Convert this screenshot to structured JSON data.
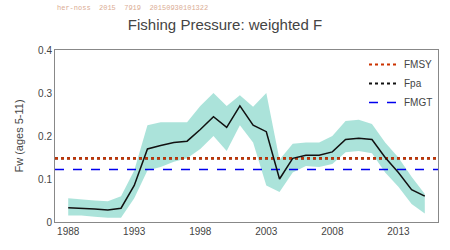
{
  "chart_data": {
    "type": "line",
    "title": "Fishing Pressure: weighted F",
    "y_label": "Fw (ages 5-11)",
    "x": [
      1988,
      1989,
      1990,
      1991,
      1992,
      1993,
      1994,
      1995,
      1996,
      1997,
      1998,
      1999,
      2000,
      2001,
      2002,
      2003,
      2004,
      2005,
      2006,
      2007,
      2008,
      2009,
      2010,
      2011,
      2012,
      2013,
      2014,
      2015
    ],
    "series": [
      {
        "color": "#111111",
        "values": [
          0.033,
          0.032,
          0.03,
          0.028,
          0.032,
          0.085,
          0.17,
          0.178,
          0.185,
          0.188,
          0.215,
          0.245,
          0.22,
          0.27,
          0.225,
          0.21,
          0.1,
          0.148,
          0.155,
          0.155,
          0.163,
          0.192,
          0.195,
          0.192,
          0.15,
          0.115,
          0.075,
          0.06
        ],
        "low": [
          0.015,
          0.015,
          0.012,
          0.01,
          0.01,
          0.055,
          0.12,
          0.128,
          0.14,
          0.148,
          0.17,
          0.2,
          0.165,
          0.225,
          0.185,
          0.085,
          0.07,
          0.115,
          0.13,
          0.128,
          0.135,
          0.162,
          0.165,
          0.16,
          0.115,
          0.082,
          0.042,
          0.02
        ],
        "high": [
          0.055,
          0.052,
          0.05,
          0.048,
          0.06,
          0.12,
          0.225,
          0.232,
          0.232,
          0.232,
          0.27,
          0.3,
          0.27,
          0.295,
          0.268,
          0.3,
          0.145,
          0.182,
          0.185,
          0.185,
          0.2,
          0.235,
          0.238,
          0.228,
          0.185,
          0.15,
          0.105,
          0.065
        ],
        "band_color": "#66ccbb"
      }
    ],
    "reference_lines": [
      {
        "name": "FMGT",
        "value": 0.122,
        "color": "#0000ee",
        "line_style": "dashed"
      },
      {
        "name": "Fpa",
        "value": 0.148,
        "color": "#111111",
        "line_style": "dotted"
      },
      {
        "name": "FMSY",
        "value": 0.148,
        "color": "#cc3300",
        "line_style": "dotted"
      }
    ],
    "annotations": [
      {
        "text": "her-noss  2015  7919  20150930101322",
        "color": "#cc8866"
      }
    ],
    "xlim": [
      1987,
      2016
    ],
    "xticks": [
      1988,
      1993,
      1998,
      2003,
      2008,
      2013
    ],
    "ylim": [
      0,
      0.4
    ],
    "yticks": [
      0,
      0.1,
      0.2,
      0.3,
      0.4
    ],
    "grid": false,
    "legend": "upper right"
  }
}
